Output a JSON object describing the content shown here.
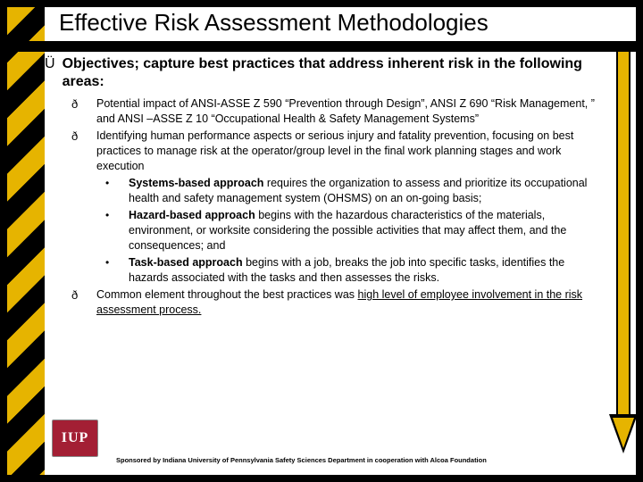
{
  "title": "Effective Risk Assessment Methodologies",
  "objective_bullet": "Ü",
  "objective_text": "Objectives; capture best practices that address inherent risk in the following areas:",
  "item_bullet": "ð",
  "items": {
    "i1": "Potential impact of ANSI-ASSE Z 590 “Prevention through Design”, ANSI Z 690 “Risk Management, ” and ANSI –ASSE Z 10 “Occupational Health & Safety Management Systems”",
    "i2": "Identifying human performance aspects or serious injury and fatality prevention, focusing on best practices to manage risk at the operator/group level in the final work planning stages and work execution",
    "i3_prefix": "Common element throughout the best practices was ",
    "i3_underline": "high level of employee involvement in the risk assessment process."
  },
  "subs": {
    "s1_bold": "Systems-based approach",
    "s1_rest": " requires the organization to assess and prioritize its occupational health and safety management system (OHSMS) on an on-going basis;",
    "s2_bold": "Hazard-based approach",
    "s2_rest": " begins with the hazardous characteristics of the materials, environment, or worksite considering the possible activities that may affect them, and the consequences; and",
    "s3_bold": "Task-based approach",
    "s3_rest": " begins with a job, breaks the job into specific tasks, identifies the hazards associated with the tasks and then assesses the risks."
  },
  "logo_text": "IUP",
  "sponsor": "Sponsored by Indiana University of Pennsylvania Safety Sciences Department in cooperation with Alcoa Foundation",
  "colors": {
    "hazard_yellow": "#e6b400",
    "black": "#000000",
    "logo_red": "#a31f34"
  }
}
